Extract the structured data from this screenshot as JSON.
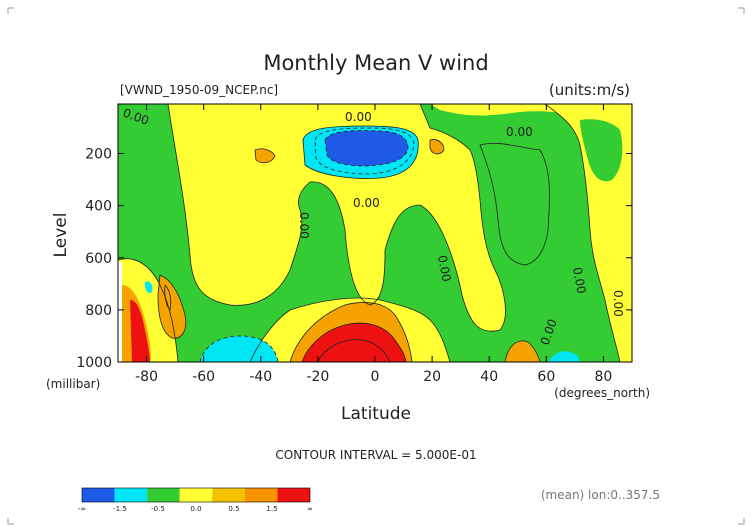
{
  "chart_data": {
    "type": "heatmap",
    "title": "Monthly Mean V wind",
    "file_label": "[VWND_1950-09_NCEP.nc]",
    "units_label": "(units:m/s)",
    "xlabel": "Latitude",
    "xunit": "(degrees_north)",
    "ylabel": "Level",
    "yunit": "(millibar)",
    "xlim": [
      -90,
      90
    ],
    "ylim": [
      1000,
      10
    ],
    "x_ticks": [
      -80,
      -60,
      -40,
      -20,
      0,
      20,
      40,
      60,
      80
    ],
    "x_tick_labels": [
      "-80",
      "-60",
      "-40",
      "-20",
      "0",
      "20",
      "40",
      "60",
      "80"
    ],
    "y_ticks": [
      200,
      400,
      600,
      800,
      1000
    ],
    "y_tick_labels": [
      "200",
      "400",
      "600",
      "800",
      "1000"
    ],
    "contour_interval_text": "CONTOUR INTERVAL = 5.000E-01",
    "contour_labels": [
      "0.00",
      "0.00",
      "0.00",
      "0.00",
      "0.00",
      "0.00",
      "0.00",
      "0.00",
      "0.00"
    ],
    "footer_text": "(mean) lon:0..357.5",
    "colorbar": {
      "labels": [
        "-∞",
        "-1.5",
        "-0.5",
        "0.0",
        "0.5",
        "1.5",
        "∞"
      ],
      "colors": [
        "#1e5ae6",
        "#00e6f5",
        "#33cc33",
        "#ffff33",
        "#f5c200",
        "#f59300",
        "#ee1111"
      ]
    },
    "regions": [
      {
        "level": "green",
        "color": "#33cc33"
      },
      {
        "level": "yellow",
        "color": "#ffff33"
      },
      {
        "level": "orange",
        "color": "#f5a300"
      },
      {
        "level": "red",
        "color": "#ee1111"
      },
      {
        "level": "cyan",
        "color": "#00e6f5"
      },
      {
        "level": "blue",
        "color": "#1e5ae6"
      }
    ]
  }
}
